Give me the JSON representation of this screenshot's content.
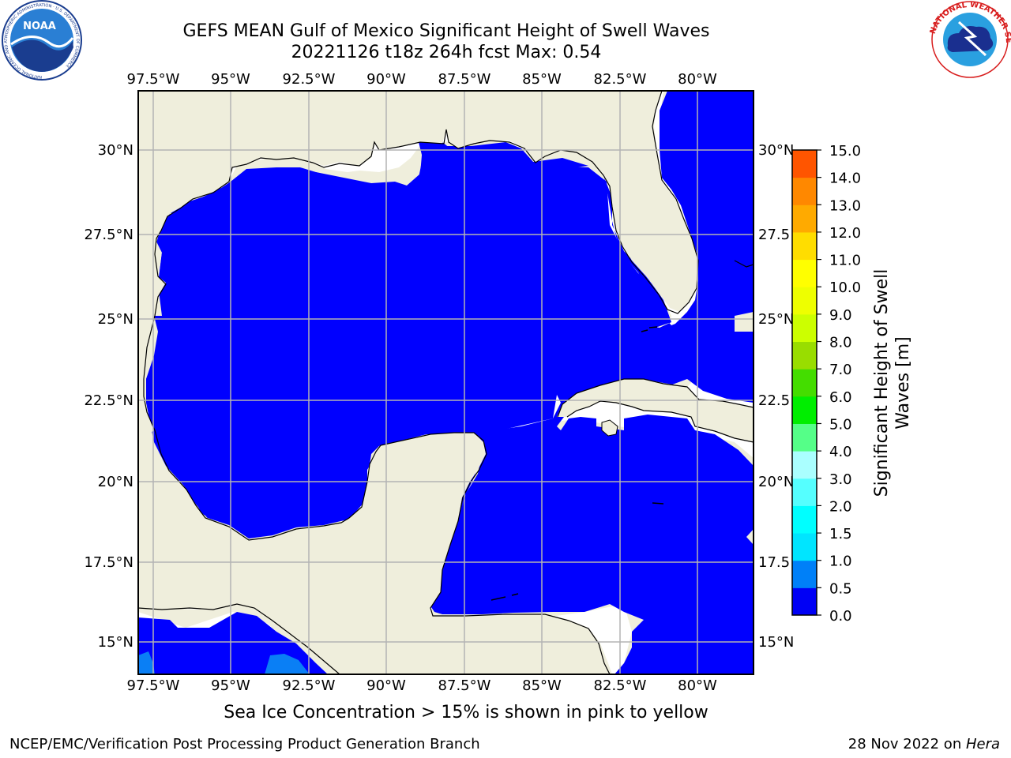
{
  "title": {
    "line1": "GEFS MEAN Gulf of Mexico Significant Height of Swell Waves",
    "line2": "20221126 t18z 264h fcst   Max: 0.54"
  },
  "note": "Sea Ice Concentration > 15% is shown in pink to yellow",
  "footer": {
    "credit": "NCEP/EMC/Verification Post Processing Product Generation Branch",
    "date": "28 Nov 2022 on ",
    "machine": "Hera"
  },
  "map": {
    "extent": {
      "lon": [
        -98,
        -79
      ],
      "lat": [
        14,
        32
      ]
    },
    "lon_ticks": [
      -97.5,
      -95,
      -92.5,
      -90,
      -87.5,
      -85,
      -82.5,
      -80
    ],
    "lat_ticks": [
      15,
      17.5,
      20,
      22.5,
      25,
      27.5,
      30
    ],
    "lon_labels": [
      "97.5°W",
      "95°W",
      "92.5°W",
      "90°W",
      "87.5°W",
      "85°W",
      "82.5°W",
      "80°W"
    ],
    "lat_labels": [
      "15°N",
      "17.5°N",
      "20°N",
      "22.5°N",
      "25°N",
      "27.5°N",
      "30°N"
    ],
    "right_lat_labels": [
      "15°N",
      "17.5",
      "20°N",
      "22.5",
      "25°N",
      "27.5",
      "30°N"
    ],
    "colors": {
      "land": "#efeedc",
      "sea": "#0000ff",
      "sea_light": "#0a7ff5",
      "grid": "#b3b3b3"
    }
  },
  "colorbar": {
    "label_line1": "Significant Height of Swell",
    "label_line2": "Waves [m]",
    "ticks": [
      "0.0",
      "0.5",
      "1.0",
      "1.5",
      "2.0",
      "3.0",
      "4.0",
      "5.0",
      "6.0",
      "7.0",
      "8.0",
      "9.0",
      "10.0",
      "11.0",
      "12.0",
      "13.0",
      "14.0",
      "15.0"
    ],
    "colors": [
      "#0000f5",
      "#0080f8",
      "#00e5ff",
      "#00ffff",
      "#55ffff",
      "#aaffff",
      "#55ff88",
      "#00ee00",
      "#44dd00",
      "#99dd00",
      "#ccff00",
      "#eeff00",
      "#ffff00",
      "#ffdd00",
      "#ffaa00",
      "#ff8800",
      "#ff5500",
      "#ff2200",
      "#ff0000"
    ]
  },
  "logos": {
    "noaa": "NOAA",
    "noaa_ring": "NATIONAL OCEANIC AND ATMOSPHERIC ADMINISTRATION · U.S. DEPARTMENT OF COMMERCE",
    "nws_ring": "NATIONAL WEATHER SERVICE"
  }
}
